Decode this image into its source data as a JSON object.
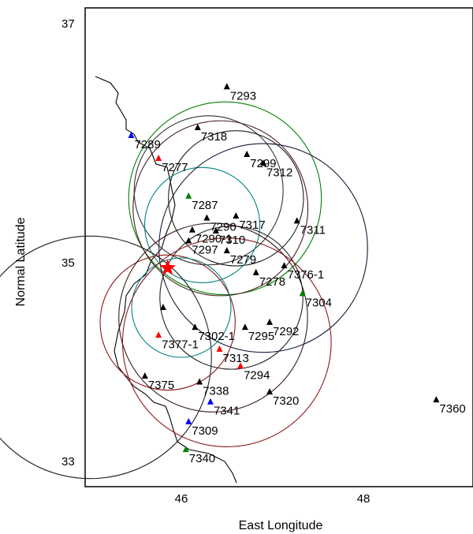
{
  "chart_data": {
    "type": "scatter",
    "xlabel": "East Longitude",
    "ylabel": "Normal Latitude",
    "xlim": [
      45.0,
      49.2
    ],
    "ylim": [
      32.8,
      37.2
    ],
    "xticks": [
      46,
      48
    ],
    "yticks": [
      33,
      35,
      37
    ],
    "epicenter": {
      "lon": 45.85,
      "lat": 34.9,
      "color": "#ff0000"
    },
    "stations": [
      {
        "name": "7293",
        "lon": 46.5,
        "lat": 36.72,
        "color": "#000000"
      },
      {
        "name": "7289",
        "lon": 45.45,
        "lat": 36.23,
        "color": "#0000ff"
      },
      {
        "name": "7318",
        "lon": 46.18,
        "lat": 36.31,
        "color": "#000000"
      },
      {
        "name": "7277",
        "lon": 45.75,
        "lat": 36.0,
        "color": "#ff0000"
      },
      {
        "name": "7299",
        "lon": 46.72,
        "lat": 36.04,
        "color": "#000000"
      },
      {
        "name": "7312",
        "lon": 46.9,
        "lat": 35.95,
        "color": "#000000"
      },
      {
        "name": "7287",
        "lon": 46.08,
        "lat": 35.62,
        "color": "#008000"
      },
      {
        "name": "7290",
        "lon": 46.28,
        "lat": 35.4,
        "color": "#000000"
      },
      {
        "name": "7317",
        "lon": 46.6,
        "lat": 35.42,
        "color": "#000000"
      },
      {
        "name": "7290-1",
        "lon": 46.12,
        "lat": 35.28,
        "color": "#000000"
      },
      {
        "name": "7311",
        "lon": 47.27,
        "lat": 35.37,
        "color": "#000000"
      },
      {
        "name": "7310",
        "lon": 46.38,
        "lat": 35.27,
        "color": "#000000"
      },
      {
        "name": "7297",
        "lon": 46.08,
        "lat": 35.17,
        "color": "#000000"
      },
      {
        "name": "7279",
        "lon": 46.5,
        "lat": 35.07,
        "color": "#000000"
      },
      {
        "name": "7376-1",
        "lon": 47.13,
        "lat": 34.92,
        "color": "#000000"
      },
      {
        "name": "7278",
        "lon": 46.82,
        "lat": 34.85,
        "color": "#000000"
      },
      {
        "name": "7304",
        "lon": 47.33,
        "lat": 34.64,
        "color": "#008000"
      },
      {
        "name": "7302-1",
        "lon": 46.15,
        "lat": 34.3,
        "color": "#000000"
      },
      {
        "name": "7295",
        "lon": 46.7,
        "lat": 34.3,
        "color": "#000000"
      },
      {
        "name": "7292",
        "lon": 46.97,
        "lat": 34.35,
        "color": "#000000"
      },
      {
        "name": "7377-1",
        "lon": 45.75,
        "lat": 34.22,
        "color": "#ff0000"
      },
      {
        "name": "7313",
        "lon": 46.42,
        "lat": 34.08,
        "color": "#ff0000"
      },
      {
        "name": "7294",
        "lon": 46.65,
        "lat": 33.91,
        "color": "#ff0000"
      },
      {
        "name": "7375",
        "lon": 45.6,
        "lat": 33.81,
        "color": "#000000"
      },
      {
        "name": "7338",
        "lon": 46.2,
        "lat": 33.75,
        "color": "#000000"
      },
      {
        "name": "7320",
        "lon": 46.97,
        "lat": 33.65,
        "color": "#000000"
      },
      {
        "name": "7341",
        "lon": 46.32,
        "lat": 33.55,
        "color": "#0000ff"
      },
      {
        "name": "7360",
        "lon": 48.8,
        "lat": 33.57,
        "color": "#000000"
      },
      {
        "name": "7309",
        "lon": 46.08,
        "lat": 33.35,
        "color": "#0000ff"
      },
      {
        "name": "7340",
        "lon": 46.05,
        "lat": 33.07,
        "color": "#008000"
      },
      {
        "name": "",
        "lon": 45.8,
        "lat": 34.5,
        "color": "#000000"
      }
    ],
    "circles": [
      {
        "lon": 46.48,
        "lat": 35.6,
        "r_deg": 0.97,
        "color": "#008000"
      },
      {
        "lon": 46.43,
        "lat": 35.5,
        "r_deg": 0.88,
        "color": "#4a2020"
      },
      {
        "lon": 46.3,
        "lat": 35.68,
        "r_deg": 0.75,
        "color": "#333333"
      },
      {
        "lon": 46.6,
        "lat": 35.6,
        "r_deg": 0.68,
        "color": "#222222"
      },
      {
        "lon": 46.23,
        "lat": 35.33,
        "r_deg": 0.58,
        "color": "#008080"
      },
      {
        "lon": 46.9,
        "lat": 35.1,
        "r_deg": 1.05,
        "color": "#1a1a3a"
      },
      {
        "lon": 46.55,
        "lat": 34.6,
        "r_deg": 0.72,
        "color": "#222222"
      },
      {
        "lon": 45.0,
        "lat": 34.0,
        "r_deg": 1.22,
        "color": "#222222"
      },
      {
        "lon": 45.85,
        "lat": 34.35,
        "r_deg": 0.68,
        "color": "#8b1a1a"
      },
      {
        "lon": 46.0,
        "lat": 34.5,
        "r_deg": 0.5,
        "color": "#008080"
      },
      {
        "lon": 46.5,
        "lat": 34.15,
        "r_deg": 1.05,
        "color": "#8b1a1a"
      },
      {
        "lon": 46.35,
        "lat": 34.4,
        "r_deg": 0.95,
        "color": "#3a1a1a"
      }
    ]
  }
}
